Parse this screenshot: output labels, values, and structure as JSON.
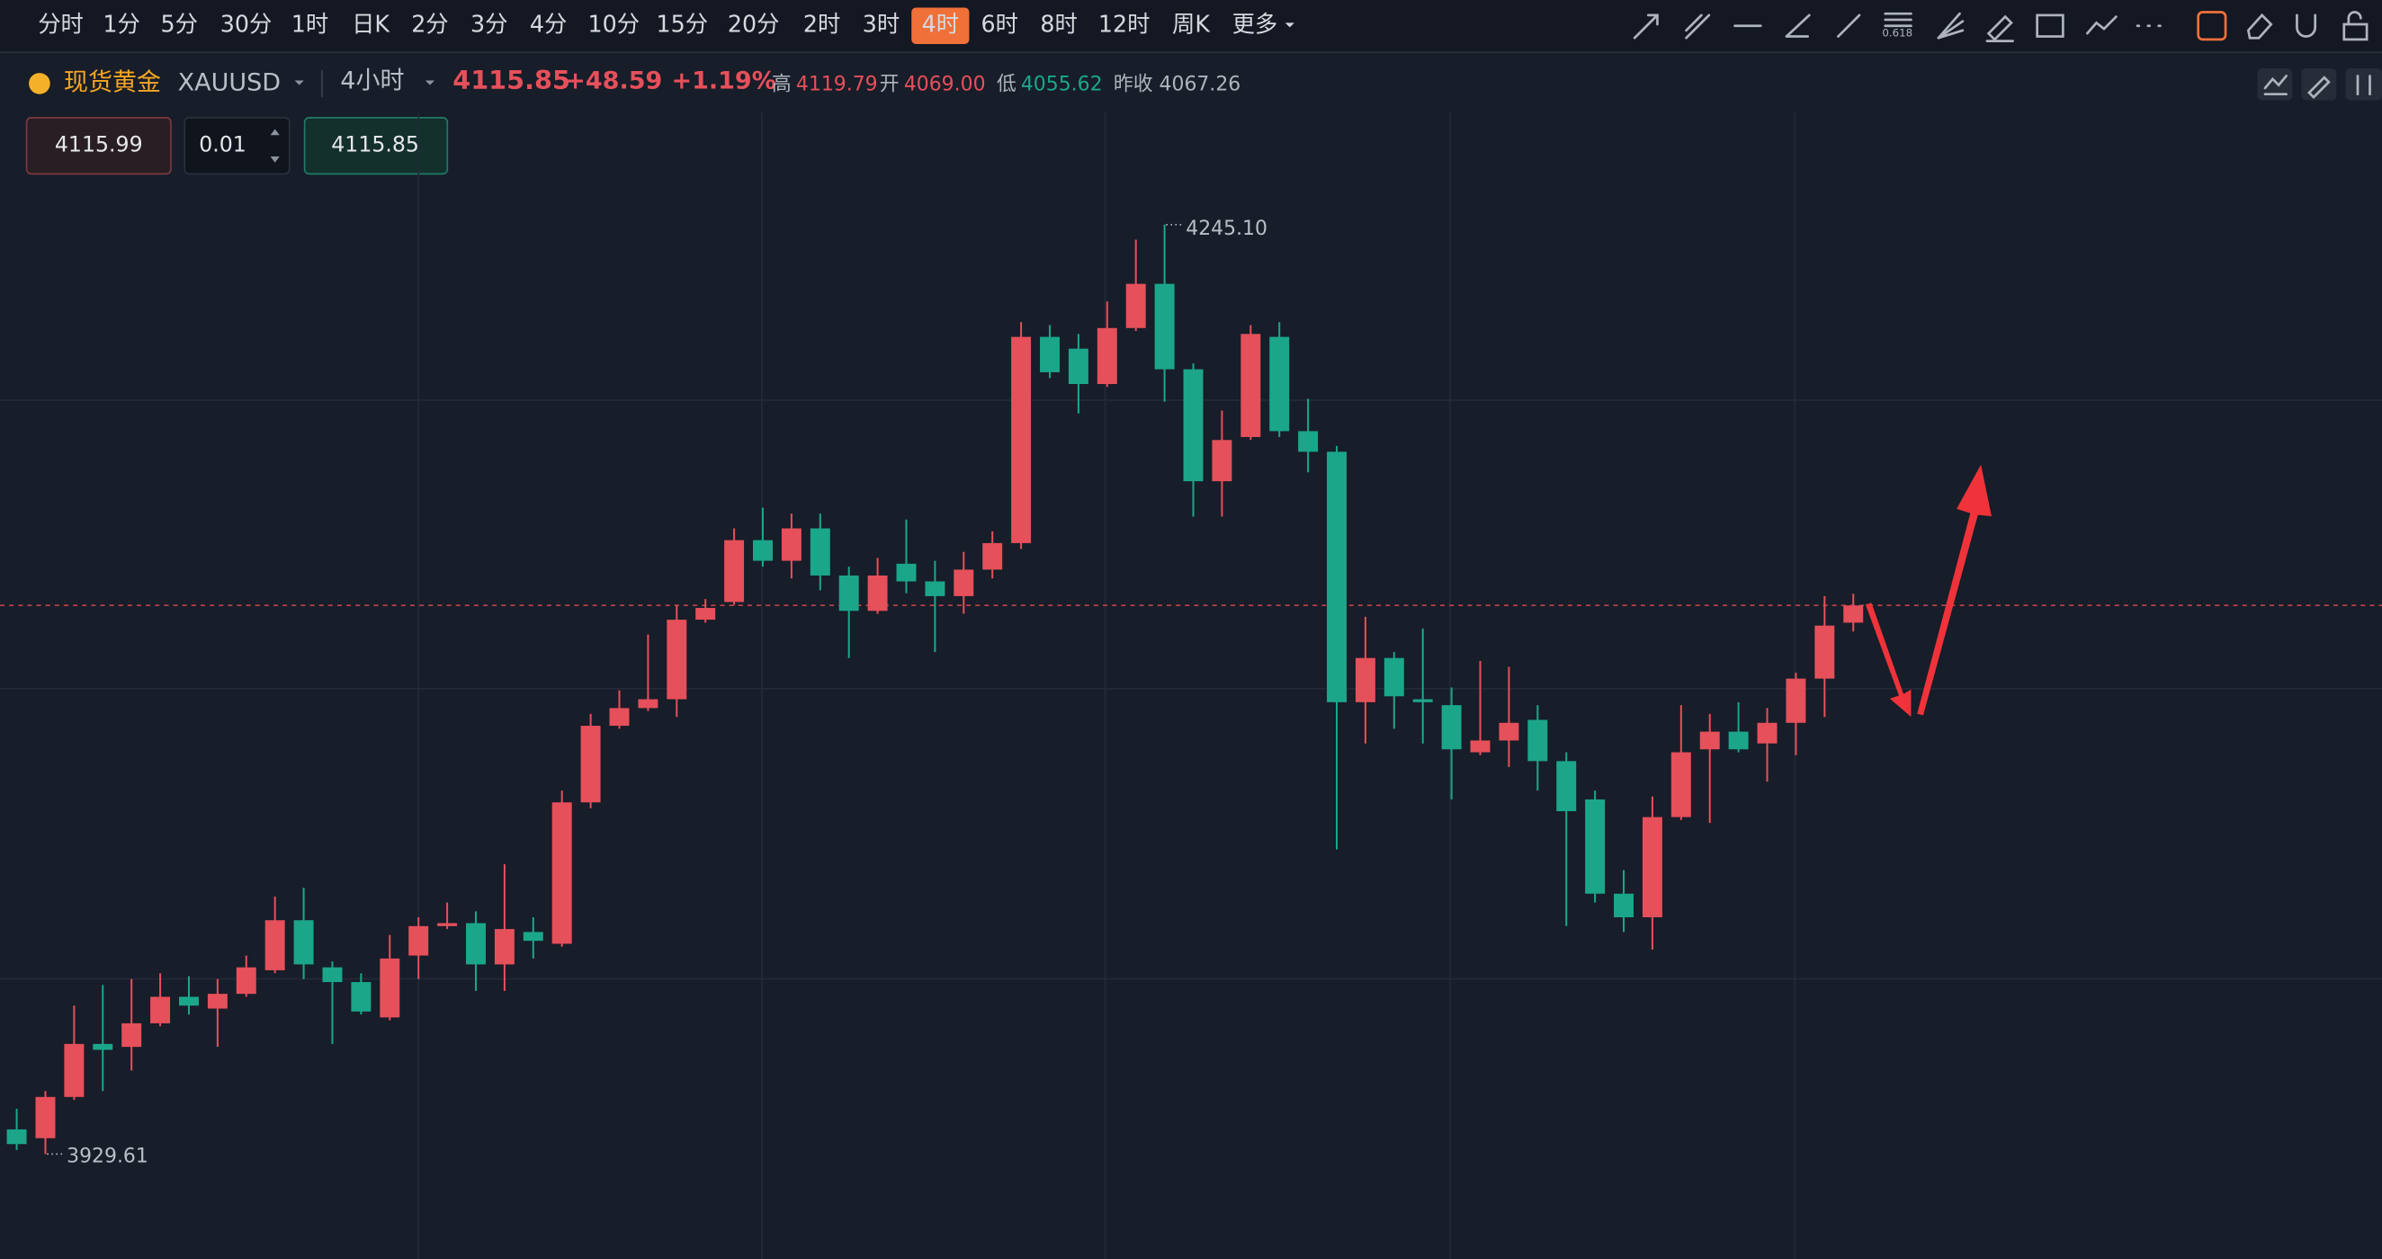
{
  "toolbar": {
    "periods": [
      "分时",
      "1分",
      "5分",
      "30分",
      "1时",
      "日K",
      "2分",
      "3分",
      "4分",
      "10分",
      "15分",
      "20分",
      "2时",
      "3时",
      "4时",
      "6时",
      "8时",
      "12时",
      "周K",
      "更多"
    ],
    "active": 14
  },
  "header": {
    "symbol_name": "现货黄金",
    "symbol_code": "XAUUSD",
    "interval": "4小时",
    "price": "4115.85",
    "change": "+48.59",
    "change_pct": "+1.19%",
    "high_label": "高",
    "high": "4119.79",
    "open_label": "开",
    "open": "4069.00",
    "low_label": "低",
    "low": "4055.62",
    "prev_close_label": "昨收",
    "prev_close": "4067.26"
  },
  "order": {
    "bid": "4115.99",
    "quantity": "0.01",
    "ask": "4115.85"
  },
  "chart_data": {
    "type": "candlestick",
    "up_color": "#e5505a",
    "down_color": "#1ba68a",
    "ylim": [
      3894,
      4283.2
    ],
    "open": [
      3938,
      3935,
      3949,
      3967,
      3966,
      3974,
      3983,
      3979,
      3984,
      3992,
      4009,
      3993,
      3988,
      3976,
      3997,
      4007,
      4008,
      3994,
      4005,
      4001,
      4049,
      4075,
      4081,
      4084,
      4111,
      4117,
      4138,
      4131,
      4142,
      4126,
      4114,
      4130,
      4124,
      4119,
      4128,
      4137,
      4207,
      4203,
      4191,
      4210,
      4225,
      4196,
      4158,
      4173,
      4207,
      4175,
      4168,
      4083,
      4098,
      4084,
      4082,
      4066,
      4070,
      4077,
      4063,
      4050,
      4018,
      4010,
      4044,
      4067,
      4073,
      4069,
      4076,
      4091,
      4110
    ],
    "high": [
      3945,
      3951,
      3980,
      3987,
      3989,
      3991,
      3990,
      3989,
      3997,
      4017,
      4020,
      3995,
      3991,
      4004,
      4010,
      4015,
      4012,
      4028,
      4010,
      4053,
      4079,
      4087,
      4106,
      4116,
      4118,
      4142,
      4149,
      4147,
      4147,
      4129,
      4132,
      4145,
      4131,
      4134,
      4141,
      4212,
      4211,
      4208,
      4219,
      4240,
      4245.1,
      4198,
      4182,
      4211,
      4212,
      4186,
      4170,
      4112,
      4100,
      4108,
      4088,
      4097,
      4095,
      4082,
      4066,
      4053,
      4026,
      4051,
      4082,
      4079,
      4083,
      4081,
      4093,
      4119,
      4119.79
    ],
    "low": [
      3931,
      3929.61,
      3948,
      3951,
      3958,
      3973,
      3977,
      3966,
      3983,
      3991,
      3989,
      3967,
      3977,
      3975,
      3989,
      4006,
      3985,
      3985,
      3996,
      4000,
      4047,
      4074,
      4080,
      4078,
      4110,
      4116,
      4129,
      4125,
      4121,
      4098,
      4113,
      4120,
      4100,
      4113,
      4125,
      4135,
      4193,
      4181,
      4190,
      4209,
      4185,
      4146,
      4146,
      4172,
      4173,
      4161,
      4033,
      4069,
      4074,
      4069,
      4050,
      4065,
      4061,
      4053,
      4007,
      4015,
      4005,
      3999,
      4043,
      4042,
      4066,
      4056,
      4065,
      4078,
      4107
    ],
    "close": [
      3933,
      3949,
      3967,
      3965,
      3974,
      3983,
      3980,
      3984,
      3993,
      4009,
      3994,
      3988,
      3978,
      3996,
      4007,
      4008,
      3994,
      4006,
      4002,
      4049,
      4075,
      4081,
      4084,
      4111,
      4115,
      4138,
      4131,
      4142,
      4126,
      4114,
      4126,
      4124,
      4119,
      4128,
      4137,
      4207,
      4195,
      4191,
      4210,
      4225,
      4196,
      4158,
      4172,
      4208,
      4175,
      4168,
      4083,
      4098,
      4085,
      4083,
      4067,
      4070,
      4076,
      4063,
      4046,
      4018,
      4010,
      4044,
      4066,
      4073,
      4067,
      4076,
      4091,
      4109,
      4115.85
    ],
    "max_label": "4245.10",
    "min_label": "3929.61"
  }
}
